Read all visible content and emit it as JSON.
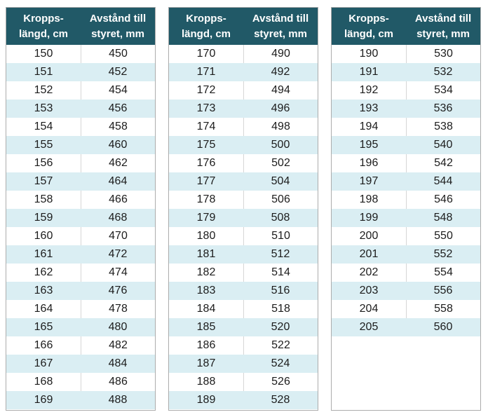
{
  "colors": {
    "header_bg": "#215967",
    "header_text": "#ffffff",
    "stripe_bg": "#daeef3",
    "row_bg": "#ffffff",
    "text": "#1c1c1c",
    "outer_border": "#acacac",
    "divider": "#d6d6d6"
  },
  "tables": [
    {
      "name": "size-table-150-169",
      "columns": [
        {
          "line1": "Kropps-",
          "line2": "längd, cm"
        },
        {
          "line1": "Avstånd till",
          "line2": "styret, mm"
        }
      ],
      "rows": [
        [
          "150",
          "450"
        ],
        [
          "151",
          "452"
        ],
        [
          "152",
          "454"
        ],
        [
          "153",
          "456"
        ],
        [
          "154",
          "458"
        ],
        [
          "155",
          "460"
        ],
        [
          "156",
          "462"
        ],
        [
          "157",
          "464"
        ],
        [
          "158",
          "466"
        ],
        [
          "159",
          "468"
        ],
        [
          "160",
          "470"
        ],
        [
          "161",
          "472"
        ],
        [
          "162",
          "474"
        ],
        [
          "163",
          "476"
        ],
        [
          "164",
          "478"
        ],
        [
          "165",
          "480"
        ],
        [
          "166",
          "482"
        ],
        [
          "167",
          "484"
        ],
        [
          "168",
          "486"
        ],
        [
          "169",
          "488"
        ]
      ]
    },
    {
      "name": "size-table-170-189",
      "columns": [
        {
          "line1": "Kropps-",
          "line2": "längd, cm"
        },
        {
          "line1": "Avstånd till",
          "line2": "styret, mm"
        }
      ],
      "rows": [
        [
          "170",
          "490"
        ],
        [
          "171",
          "492"
        ],
        [
          "172",
          "494"
        ],
        [
          "173",
          "496"
        ],
        [
          "174",
          "498"
        ],
        [
          "175",
          "500"
        ],
        [
          "176",
          "502"
        ],
        [
          "177",
          "504"
        ],
        [
          "178",
          "506"
        ],
        [
          "179",
          "508"
        ],
        [
          "180",
          "510"
        ],
        [
          "181",
          "512"
        ],
        [
          "182",
          "514"
        ],
        [
          "183",
          "516"
        ],
        [
          "184",
          "518"
        ],
        [
          "185",
          "520"
        ],
        [
          "186",
          "522"
        ],
        [
          "187",
          "524"
        ],
        [
          "188",
          "526"
        ],
        [
          "189",
          "528"
        ]
      ]
    },
    {
      "name": "size-table-190-205",
      "columns": [
        {
          "line1": "Kropps-",
          "line2": "längd, cm"
        },
        {
          "line1": "Avstånd till",
          "line2": "styret, mm"
        }
      ],
      "rows": [
        [
          "190",
          "530"
        ],
        [
          "191",
          "532"
        ],
        [
          "192",
          "534"
        ],
        [
          "193",
          "536"
        ],
        [
          "194",
          "538"
        ],
        [
          "195",
          "540"
        ],
        [
          "196",
          "542"
        ],
        [
          "197",
          "544"
        ],
        [
          "198",
          "546"
        ],
        [
          "199",
          "548"
        ],
        [
          "200",
          "550"
        ],
        [
          "201",
          "552"
        ],
        [
          "202",
          "554"
        ],
        [
          "203",
          "556"
        ],
        [
          "204",
          "558"
        ],
        [
          "205",
          "560"
        ]
      ]
    }
  ]
}
